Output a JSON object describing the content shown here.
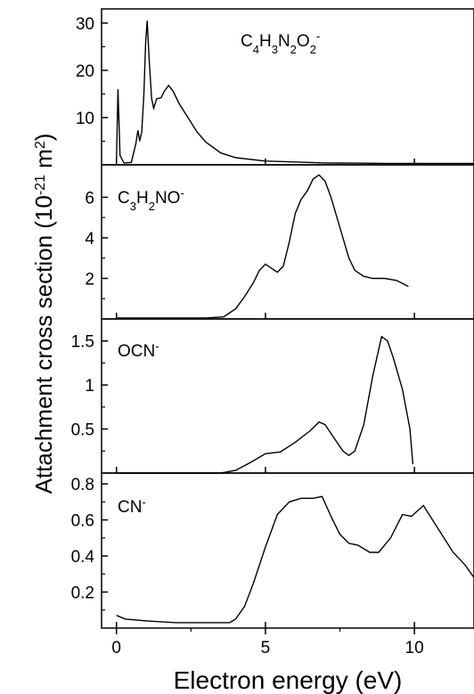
{
  "chart_data": {
    "type": "line",
    "xlabel": "Electron energy (eV)",
    "ylabel_main": "Attachment cross section (10",
    "ylabel_exp": "-21",
    "ylabel_unit": " m",
    "ylabel_unit_exp": "2",
    "ylabel_close": ")",
    "xlim": [
      -0.5,
      12
    ],
    "xticks": [
      0,
      5,
      10
    ],
    "grid": false,
    "panels": [
      {
        "label": "C4H3N2O2-",
        "ylim": [
          0,
          33
        ],
        "yticks": [
          10,
          20,
          30
        ],
        "points": [
          [
            0,
            0.6
          ],
          [
            0.05,
            16
          ],
          [
            0.12,
            2
          ],
          [
            0.25,
            0.4
          ],
          [
            0.5,
            0.5
          ],
          [
            0.65,
            4.5
          ],
          [
            0.72,
            7.3
          ],
          [
            0.78,
            5
          ],
          [
            0.85,
            7
          ],
          [
            0.92,
            15
          ],
          [
            0.98,
            26
          ],
          [
            1.03,
            30.5
          ],
          [
            1.1,
            22
          ],
          [
            1.18,
            14
          ],
          [
            1.25,
            12
          ],
          [
            1.35,
            14
          ],
          [
            1.5,
            14.2
          ],
          [
            1.6,
            15.5
          ],
          [
            1.75,
            16.8
          ],
          [
            1.9,
            15.6
          ],
          [
            2.1,
            13
          ],
          [
            2.4,
            10
          ],
          [
            2.7,
            7
          ],
          [
            3.0,
            4.8
          ],
          [
            3.5,
            2.5
          ],
          [
            4.0,
            1.5
          ],
          [
            5.0,
            0.8
          ],
          [
            6.0,
            0.6
          ],
          [
            7.0,
            0.4
          ],
          [
            8.0,
            0.35
          ],
          [
            9.0,
            0.3
          ],
          [
            10.0,
            0.3
          ],
          [
            12.0,
            0.3
          ]
        ]
      },
      {
        "label": "C3H2NO-",
        "ylim": [
          0,
          7.6
        ],
        "yticks": [
          2,
          4,
          6
        ],
        "points": [
          [
            0,
            0.05
          ],
          [
            2,
            0.05
          ],
          [
            3,
            0.05
          ],
          [
            3.6,
            0.1
          ],
          [
            4.0,
            0.5
          ],
          [
            4.3,
            1.1
          ],
          [
            4.6,
            1.8
          ],
          [
            4.8,
            2.4
          ],
          [
            5.0,
            2.7
          ],
          [
            5.2,
            2.5
          ],
          [
            5.4,
            2.3
          ],
          [
            5.6,
            2.6
          ],
          [
            5.8,
            3.8
          ],
          [
            6.0,
            5.2
          ],
          [
            6.2,
            5.9
          ],
          [
            6.4,
            6.3
          ],
          [
            6.6,
            6.9
          ],
          [
            6.8,
            7.1
          ],
          [
            7.0,
            6.8
          ],
          [
            7.2,
            6.0
          ],
          [
            7.4,
            5.0
          ],
          [
            7.6,
            4.0
          ],
          [
            7.8,
            3.0
          ],
          [
            8.0,
            2.4
          ],
          [
            8.3,
            2.1
          ],
          [
            8.6,
            2.0
          ],
          [
            9.0,
            2.0
          ],
          [
            9.4,
            1.9
          ],
          [
            9.8,
            1.6
          ]
        ]
      },
      {
        "label": "OCN-",
        "ylim": [
          0,
          1.75
        ],
        "yticks": [
          0.5,
          1.0,
          1.5
        ],
        "points": [
          [
            0,
            0.0
          ],
          [
            3.5,
            0.0
          ],
          [
            4.0,
            0.03
          ],
          [
            4.5,
            0.12
          ],
          [
            5.0,
            0.22
          ],
          [
            5.5,
            0.24
          ],
          [
            6.0,
            0.35
          ],
          [
            6.5,
            0.48
          ],
          [
            6.8,
            0.58
          ],
          [
            7.0,
            0.55
          ],
          [
            7.3,
            0.4
          ],
          [
            7.6,
            0.25
          ],
          [
            7.8,
            0.2
          ],
          [
            8.0,
            0.25
          ],
          [
            8.3,
            0.55
          ],
          [
            8.6,
            1.1
          ],
          [
            8.9,
            1.55
          ],
          [
            9.1,
            1.5
          ],
          [
            9.3,
            1.3
          ],
          [
            9.6,
            0.95
          ],
          [
            9.85,
            0.5
          ],
          [
            9.95,
            0.1
          ]
        ]
      },
      {
        "label": "CN-",
        "ylim": [
          0,
          0.86
        ],
        "yticks": [
          0.2,
          0.4,
          0.6,
          0.8
        ],
        "points": [
          [
            0,
            0.07
          ],
          [
            0.3,
            0.05
          ],
          [
            1,
            0.04
          ],
          [
            2,
            0.03
          ],
          [
            3,
            0.03
          ],
          [
            3.8,
            0.03
          ],
          [
            4.0,
            0.05
          ],
          [
            4.3,
            0.12
          ],
          [
            4.6,
            0.25
          ],
          [
            5.0,
            0.45
          ],
          [
            5.4,
            0.63
          ],
          [
            5.8,
            0.7
          ],
          [
            6.2,
            0.72
          ],
          [
            6.6,
            0.72
          ],
          [
            6.9,
            0.73
          ],
          [
            7.2,
            0.62
          ],
          [
            7.5,
            0.52
          ],
          [
            7.8,
            0.47
          ],
          [
            8.1,
            0.46
          ],
          [
            8.5,
            0.42
          ],
          [
            8.8,
            0.42
          ],
          [
            9.2,
            0.5
          ],
          [
            9.6,
            0.63
          ],
          [
            9.9,
            0.62
          ],
          [
            10.3,
            0.68
          ],
          [
            10.8,
            0.55
          ],
          [
            11.3,
            0.42
          ],
          [
            11.7,
            0.35
          ],
          [
            12.0,
            0.28
          ]
        ]
      }
    ]
  }
}
